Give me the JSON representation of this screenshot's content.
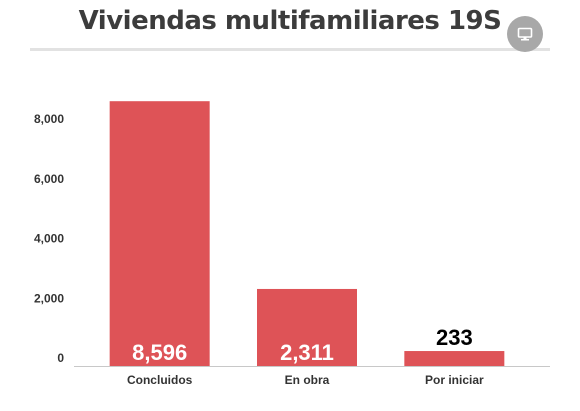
{
  "title": "Viviendas multifamiliares 19S",
  "icons": {
    "screen": "monitor-icon"
  },
  "colors": {
    "bar": "#de5357",
    "axis": "#c8c8c8",
    "title": "#3c3c3c",
    "button": "#a8a8a8"
  },
  "chart_data": {
    "type": "bar",
    "title": "Viviendas multifamiliares 19S",
    "categories": [
      "Concluidos",
      "En obra",
      "Por iniciar"
    ],
    "values": [
      8596,
      2311,
      233
    ],
    "value_labels": [
      "8,596",
      "2,311",
      "233"
    ],
    "y_ticks": [
      "0",
      "2,000",
      "4,000",
      "6,000",
      "8,000"
    ],
    "ylim": [
      0,
      8800
    ],
    "grid": false,
    "legend": "none"
  }
}
